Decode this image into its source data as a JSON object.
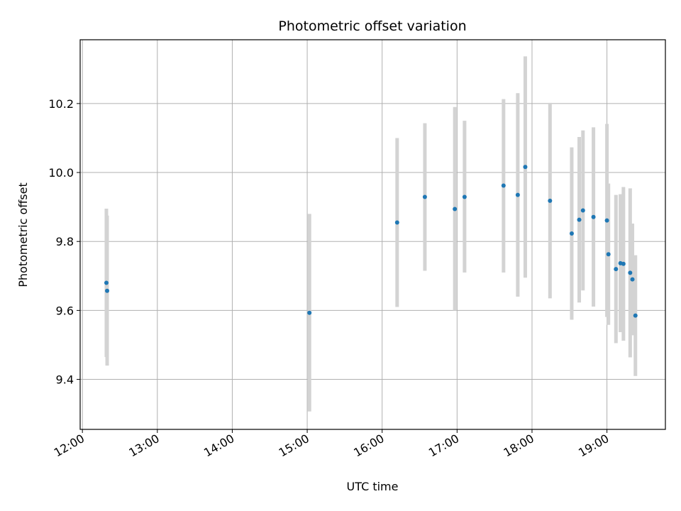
{
  "chart_data": {
    "type": "scatter",
    "title": "Photometric offset variation",
    "xlabel": "UTC time",
    "ylabel": "Photometric offset",
    "x_unit": "hours UTC",
    "xlim": [
      11.97,
      19.78
    ],
    "ylim": [
      9.255,
      10.385
    ],
    "x_ticks": [
      {
        "value": 12,
        "label": "12:00"
      },
      {
        "value": 13,
        "label": "13:00"
      },
      {
        "value": 14,
        "label": "14:00"
      },
      {
        "value": 15,
        "label": "15:00"
      },
      {
        "value": 16,
        "label": "16:00"
      },
      {
        "value": 17,
        "label": "17:00"
      },
      {
        "value": 18,
        "label": "18:00"
      },
      {
        "value": 19,
        "label": "19:00"
      }
    ],
    "y_ticks": [
      {
        "value": 9.4,
        "label": "9.4"
      },
      {
        "value": 9.6,
        "label": "9.6"
      },
      {
        "value": 9.8,
        "label": "9.8"
      },
      {
        "value": 10.0,
        "label": "10.0"
      },
      {
        "value": 10.2,
        "label": "10.2"
      }
    ],
    "grid": true,
    "colors": {
      "point": "#1f77b4",
      "errorbar": "#d3d3d3",
      "grid": "#b0b0b0"
    },
    "points": [
      {
        "x": 12.32,
        "y": 9.68,
        "lo": 9.465,
        "hi": 9.895
      },
      {
        "x": 12.33,
        "y": 9.657,
        "lo": 9.44,
        "hi": 9.875
      },
      {
        "x": 15.03,
        "y": 9.593,
        "lo": 9.307,
        "hi": 9.88
      },
      {
        "x": 16.2,
        "y": 9.855,
        "lo": 9.61,
        "hi": 10.1
      },
      {
        "x": 16.57,
        "y": 9.929,
        "lo": 9.715,
        "hi": 10.143
      },
      {
        "x": 16.97,
        "y": 9.894,
        "lo": 9.6,
        "hi": 10.19
      },
      {
        "x": 17.1,
        "y": 9.929,
        "lo": 9.71,
        "hi": 10.15
      },
      {
        "x": 17.62,
        "y": 9.962,
        "lo": 9.71,
        "hi": 10.213
      },
      {
        "x": 17.81,
        "y": 9.935,
        "lo": 9.64,
        "hi": 10.23
      },
      {
        "x": 17.91,
        "y": 10.016,
        "lo": 9.695,
        "hi": 10.337
      },
      {
        "x": 18.24,
        "y": 9.918,
        "lo": 9.635,
        "hi": 10.202
      },
      {
        "x": 18.53,
        "y": 9.823,
        "lo": 9.573,
        "hi": 10.073
      },
      {
        "x": 18.63,
        "y": 9.863,
        "lo": 9.623,
        "hi": 10.103
      },
      {
        "x": 18.68,
        "y": 9.89,
        "lo": 9.658,
        "hi": 10.122
      },
      {
        "x": 18.82,
        "y": 9.871,
        "lo": 9.611,
        "hi": 10.131
      },
      {
        "x": 19.0,
        "y": 9.861,
        "lo": 9.581,
        "hi": 10.141
      },
      {
        "x": 19.02,
        "y": 9.763,
        "lo": 9.558,
        "hi": 9.968
      },
      {
        "x": 19.12,
        "y": 9.72,
        "lo": 9.505,
        "hi": 9.935
      },
      {
        "x": 19.18,
        "y": 9.737,
        "lo": 9.537,
        "hi": 9.937
      },
      {
        "x": 19.22,
        "y": 9.735,
        "lo": 9.512,
        "hi": 9.958
      },
      {
        "x": 19.31,
        "y": 9.709,
        "lo": 9.464,
        "hi": 9.954
      },
      {
        "x": 19.34,
        "y": 9.69,
        "lo": 9.528,
        "hi": 9.852
      },
      {
        "x": 19.38,
        "y": 9.585,
        "lo": 9.41,
        "hi": 9.76
      }
    ]
  }
}
